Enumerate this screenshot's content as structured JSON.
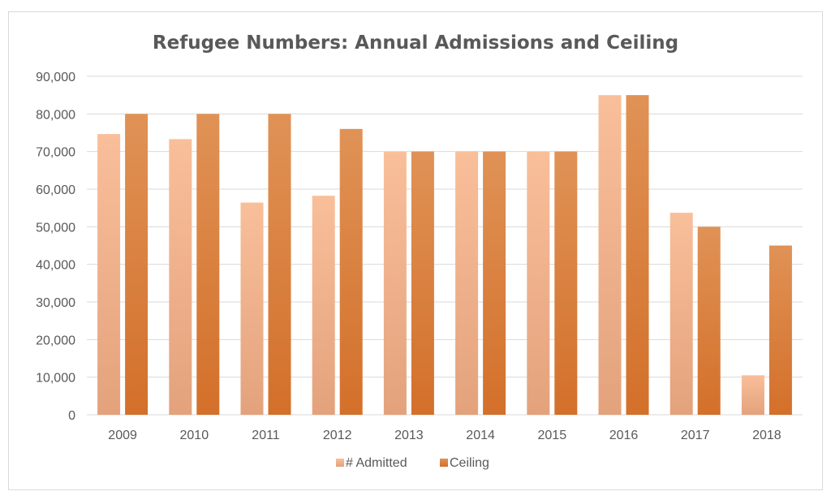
{
  "chart_data": {
    "type": "bar",
    "title": "Refugee Numbers: Annual Admissions and Ceiling",
    "xlabel": "",
    "ylabel": "",
    "categories": [
      "2009",
      "2010",
      "2011",
      "2012",
      "2013",
      "2014",
      "2015",
      "2016",
      "2017",
      "2018"
    ],
    "series": [
      {
        "name": "# Admitted",
        "values": [
          74652,
          73293,
          56424,
          58238,
          69909,
          69987,
          69933,
          84994,
          53716,
          10500
        ],
        "color_top": "#f9bf9a",
        "color_bottom": "#e3a27c"
      },
      {
        "name": "Ceiling",
        "values": [
          80000,
          80000,
          80000,
          76000,
          70000,
          70000,
          70000,
          85000,
          50000,
          45000
        ],
        "color_top": "#e09256",
        "color_bottom": "#d3702a"
      }
    ],
    "ylim": [
      0,
      90000
    ],
    "yticks": [
      0,
      10000,
      20000,
      30000,
      40000,
      50000,
      60000,
      70000,
      80000,
      90000
    ],
    "ytick_labels": [
      "0",
      "10,000",
      "20,000",
      "30,000",
      "40,000",
      "50,000",
      "60,000",
      "70,000",
      "80,000",
      "90,000"
    ],
    "grid": true,
    "legend_position": "bottom"
  }
}
